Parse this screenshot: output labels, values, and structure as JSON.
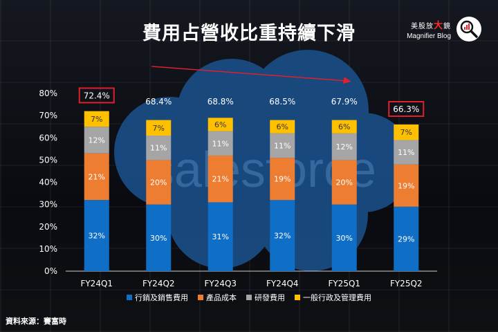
{
  "title": "費用占營收比重持續下滑",
  "brand": {
    "zh_prefix": "美股放",
    "zh_highlight": "大",
    "zh_suffix": "鏡",
    "en": "Magnifier Blog",
    "icon": "magnifier-chart-icon"
  },
  "watermark": "salesforce",
  "source": "資料來源：賽富時",
  "colors": {
    "series": [
      "#0f6fc6",
      "#ed7d31",
      "#a5a5a5",
      "#ffc000"
    ],
    "highlight_box": "#e0202a",
    "arrow": "#e0202a",
    "cloud": "#1a4d86"
  },
  "chart_data": {
    "type": "bar",
    "stacked": true,
    "categories": [
      "FY24Q1",
      "FY24Q2",
      "FY24Q3",
      "FY24Q4",
      "FY25Q1",
      "FY25Q2"
    ],
    "series": [
      {
        "name": "行銷及銷售費用",
        "values": [
          32,
          30,
          31,
          32,
          30,
          29
        ],
        "labels": [
          "32%",
          "30%",
          "31%",
          "32%",
          "30%",
          "29%"
        ]
      },
      {
        "name": "產品成本",
        "values": [
          21,
          20,
          21,
          19,
          20,
          19
        ],
        "labels": [
          "21%",
          "20%",
          "21%",
          "19%",
          "20%",
          "19%"
        ]
      },
      {
        "name": "研發費用",
        "values": [
          12,
          11,
          11,
          11,
          12,
          11
        ],
        "labels": [
          "12%",
          "11%",
          "11%",
          "11%",
          "12%",
          "11%"
        ]
      },
      {
        "name": "一般行政及管理費用",
        "values": [
          7,
          7,
          6,
          6,
          6,
          7
        ],
        "labels": [
          "7%",
          "7%",
          "6%",
          "6%",
          "6%",
          "7%"
        ]
      }
    ],
    "totals": [
      72.4,
      68.4,
      68.8,
      68.5,
      67.9,
      66.3
    ],
    "total_labels": [
      "72.4%",
      "68.4%",
      "68.8%",
      "68.5%",
      "67.9%",
      "66.3%"
    ],
    "highlighted_totals": [
      "FY24Q1",
      "FY25Q2"
    ],
    "trend_arrow": {
      "from": "FY24Q2",
      "to": "FY25Q1"
    },
    "ylim": [
      0,
      80
    ],
    "yticks": [
      "0%",
      "10%",
      "20%",
      "30%",
      "40%",
      "50%",
      "60%",
      "70%",
      "80%"
    ],
    "ytick_values": [
      0,
      10,
      20,
      30,
      40,
      50,
      60,
      70,
      80
    ],
    "grid": false,
    "legend_position": "bottom"
  }
}
